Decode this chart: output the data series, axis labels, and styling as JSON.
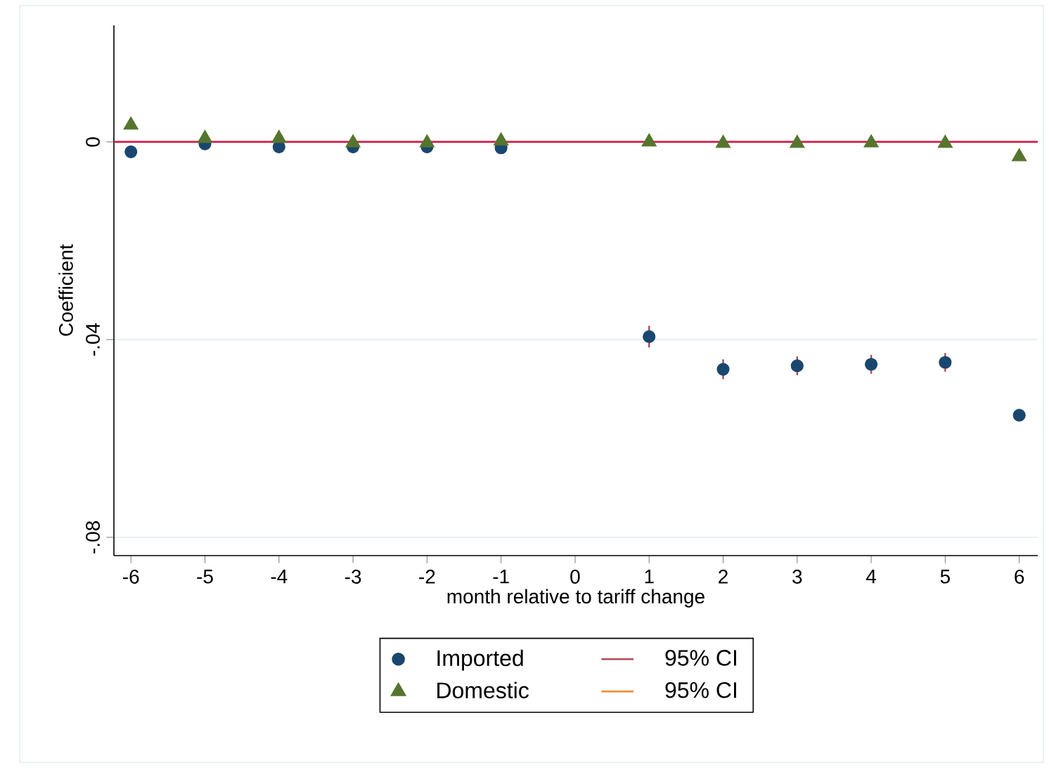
{
  "chart_data": {
    "type": "scatter",
    "xlabel": "month relative to tariff change",
    "ylabel": "Coefficient",
    "x": [
      -6,
      -5,
      -4,
      -3,
      -2,
      -1,
      1,
      2,
      3,
      4,
      5,
      6
    ],
    "series": [
      {
        "name": "Imported",
        "color": "#1a476f",
        "marker": "circle",
        "values": [
          -0.002,
          -0.0004,
          -0.001,
          -0.001,
          -0.001,
          -0.0012,
          -0.0394,
          -0.046,
          -0.0453,
          -0.045,
          -0.0446,
          -0.0553
        ],
        "errors": [
          null,
          null,
          null,
          null,
          null,
          null,
          0.0022,
          0.002,
          0.0019,
          0.0019,
          0.0019,
          null
        ]
      },
      {
        "name": "Domestic",
        "color": "#55752f",
        "marker": "triangle",
        "values": [
          0.0034,
          0.0007,
          0.0007,
          -0.0002,
          -0.0002,
          0.0002,
          0.0,
          -0.0003,
          -0.0003,
          -0.0002,
          -0.0003,
          -0.003
        ]
      },
      {
        "name": "95% CI",
        "type": "line",
        "color": "#b04a5a",
        "values": [
          null,
          null,
          null,
          null,
          null,
          null,
          null,
          null,
          null,
          null,
          null,
          null
        ]
      },
      {
        "name": "95% CI",
        "type": "line",
        "color": "#e8903a",
        "values": [
          null,
          null,
          null,
          null,
          null,
          null,
          null,
          null,
          null,
          null,
          null,
          null
        ]
      }
    ],
    "xlim": [
      -6.23,
      6.25
    ],
    "ylim": [
      -0.0837,
      0.0236
    ],
    "xticks": [
      -6,
      -5,
      -4,
      -3,
      -2,
      -1,
      0,
      1,
      2,
      3,
      4,
      5,
      6
    ],
    "yticks": [
      0,
      {
        "value": -0.04,
        "label": "-.04"
      },
      {
        "value": -0.08,
        "label": "-.08"
      }
    ],
    "ref_lines": [
      {
        "axis": "y",
        "value": 0,
        "color": "#d0264f"
      }
    ],
    "grid": "y",
    "legend": "bottom"
  }
}
